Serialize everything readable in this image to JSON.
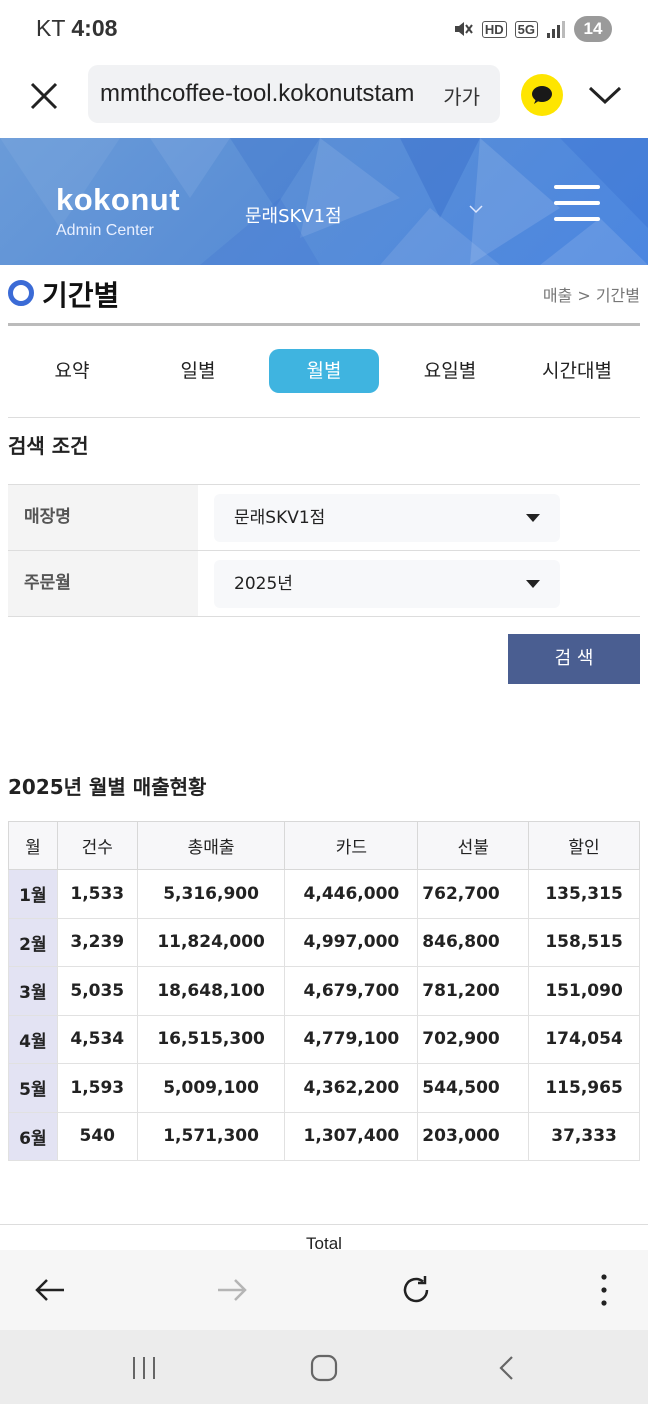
{
  "status_bar": {
    "carrier": "KT",
    "time": "4:08",
    "hd": "HD",
    "network": "5G",
    "battery": "14"
  },
  "browser": {
    "url": "mmthcoffee-tool.kokonutstam",
    "font_size_label": "가가"
  },
  "header": {
    "brand": "kokonut",
    "brand_sub": "Admin Center",
    "store": "문래SKV1점"
  },
  "page": {
    "title": "기간별",
    "breadcrumb": "매출 > 기간별"
  },
  "tabs": [
    {
      "label": "요약",
      "active": false
    },
    {
      "label": "일별",
      "active": false
    },
    {
      "label": "월별",
      "active": true
    },
    {
      "label": "요일별",
      "active": false
    },
    {
      "label": "시간대별",
      "active": false
    }
  ],
  "search": {
    "title": "검색 조건",
    "rows": [
      {
        "label": "매장명",
        "value": "문래SKV1점"
      },
      {
        "label": "주문월",
        "value": "2025년"
      }
    ],
    "button": "검 색"
  },
  "sales": {
    "title": "2025년 월별 매출현황",
    "columns": [
      "월",
      "건수",
      "총매출",
      "카드",
      "선불",
      "할인"
    ],
    "rows": [
      [
        "1월",
        "1,533",
        "5,316,900",
        "4,446,000",
        "762,700",
        "135,315"
      ],
      [
        "2월",
        "3,239",
        "11,824,000",
        "4,997,000",
        "846,800",
        "158,515"
      ],
      [
        "3월",
        "5,035",
        "18,648,100",
        "4,679,700",
        "781,200",
        "151,090"
      ],
      [
        "4월",
        "4,534",
        "16,515,300",
        "4,779,100",
        "702,900",
        "174,054"
      ],
      [
        "5월",
        "1,593",
        "5,009,100",
        "4,362,200",
        "544,500",
        "115,965"
      ],
      [
        "6월",
        "540",
        "1,571,300",
        "1,307,400",
        "203,000",
        "37,333"
      ]
    ],
    "total_label": "Total"
  },
  "colors": {
    "banner": "#5b8fd6",
    "active_tab": "#3fb4e0",
    "search_button": "#4a5e91",
    "title_dot": "#3b6bd6",
    "month_cell": "#e3e3f3"
  }
}
